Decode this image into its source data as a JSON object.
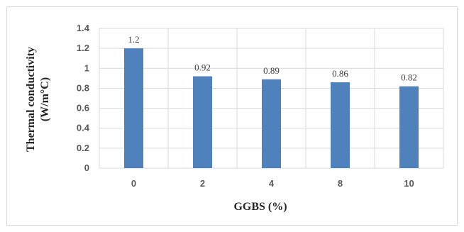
{
  "chart_data": {
    "type": "bar",
    "categories": [
      "0",
      "2",
      "4",
      "8",
      "10"
    ],
    "values": [
      1.2,
      0.92,
      0.89,
      0.86,
      0.82
    ],
    "data_labels": [
      "1.2",
      "0.92",
      "0.89",
      "0.86",
      "0.82"
    ],
    "ylabel_line1": "Thermal conductivity",
    "ylabel_line2": "(W/m°C)",
    "xlabel": "GGBS (%)",
    "ylim": [
      0,
      1.4
    ],
    "yticks": [
      "0",
      "0.2",
      "0.4",
      "0.6",
      "0.8",
      "1",
      "1.2",
      "1.4"
    ],
    "grid": true,
    "legend": "none",
    "bar_color": "#4f81bd",
    "grid_color": "#d9d9d9"
  }
}
